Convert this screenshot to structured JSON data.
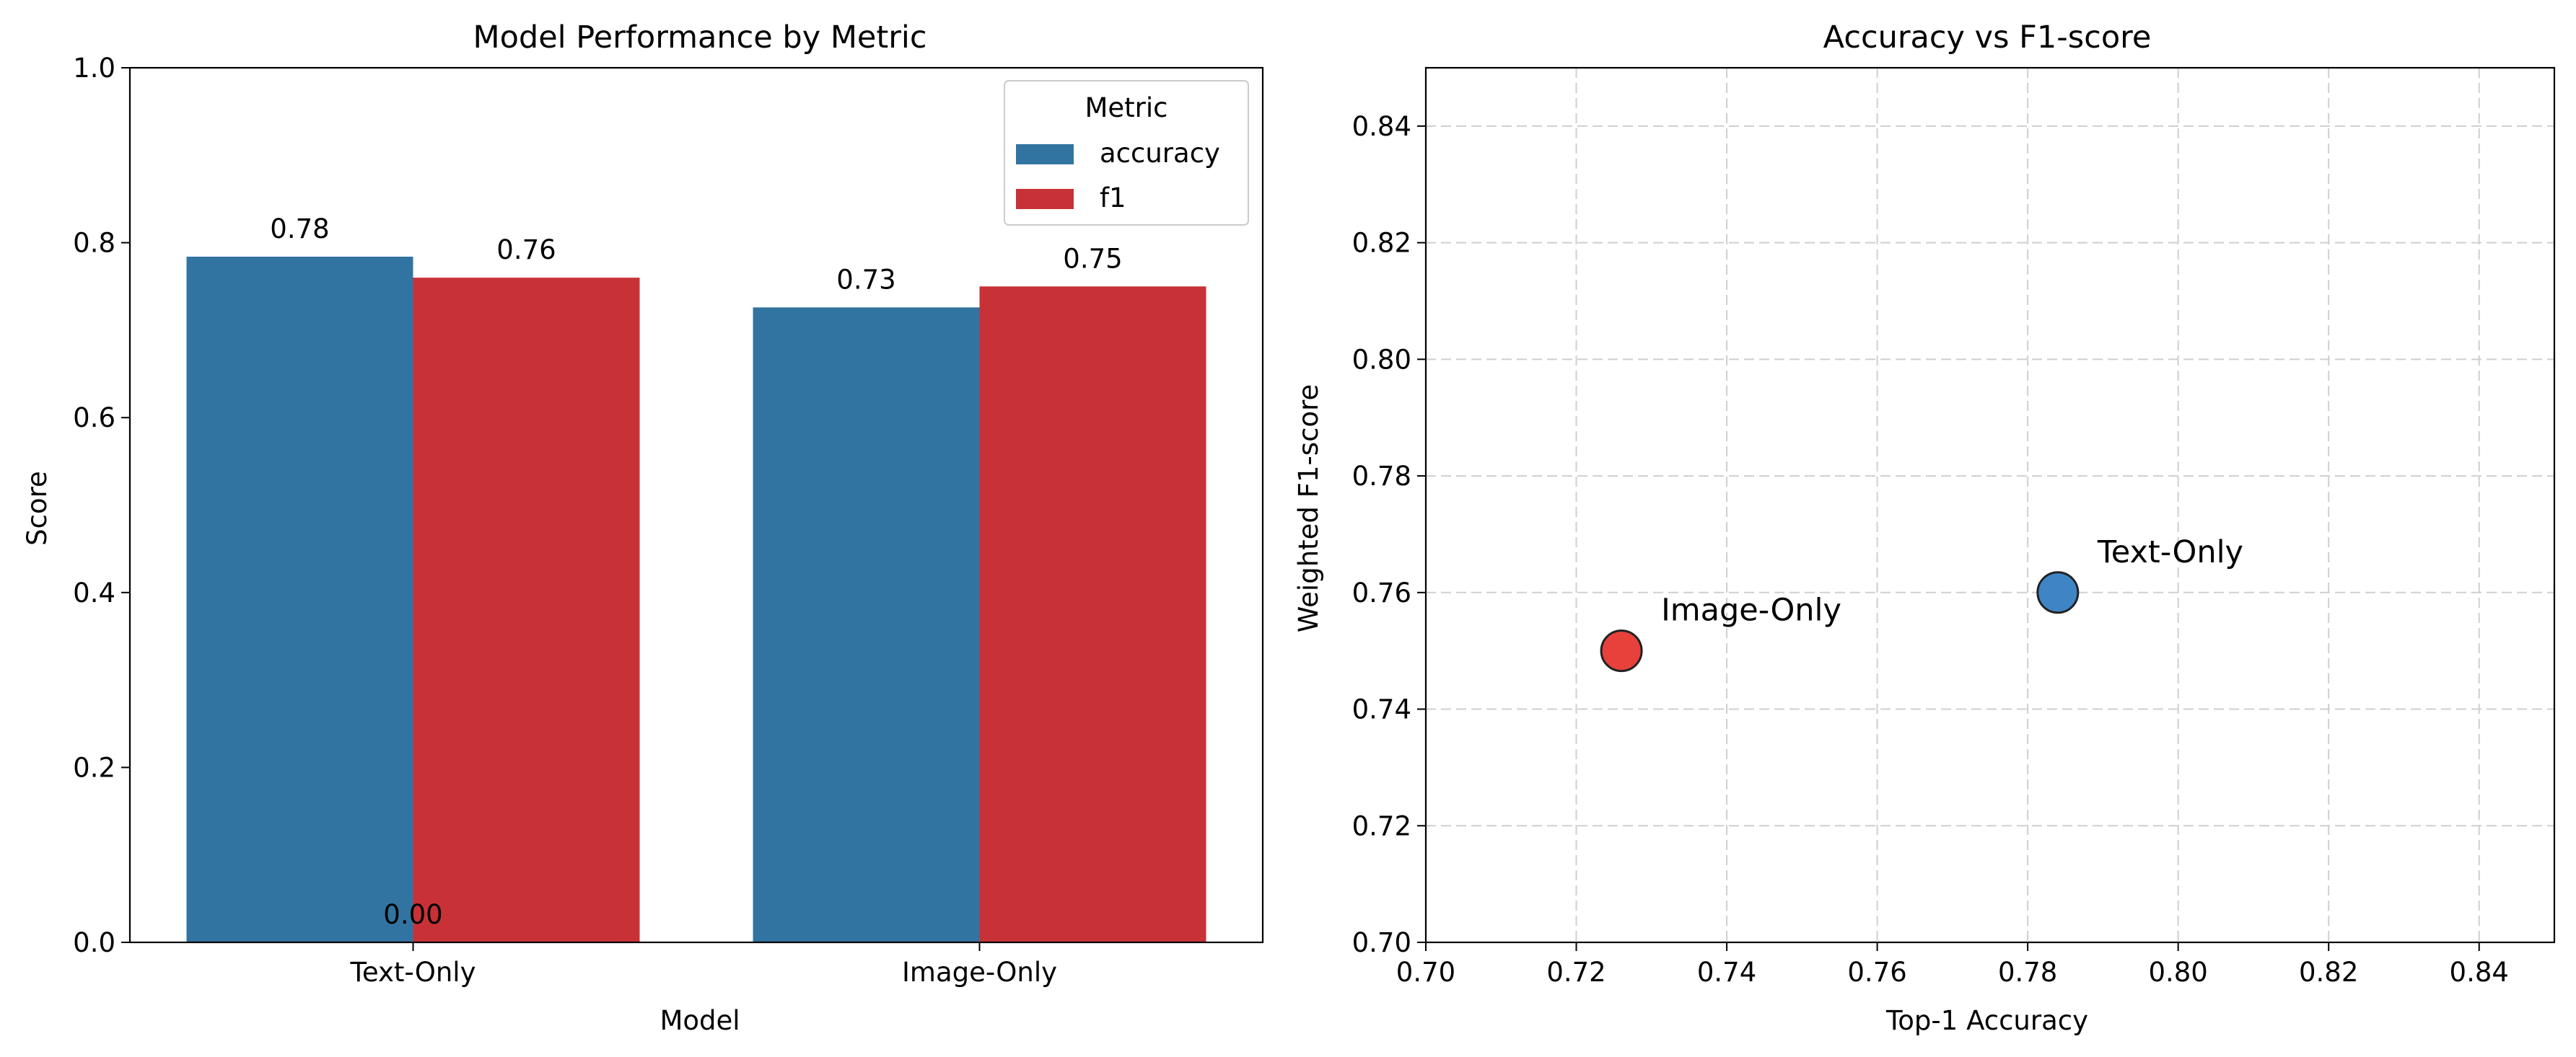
{
  "chart_data": [
    {
      "type": "bar",
      "title": "Model Performance by Metric",
      "xlabel": "Model",
      "ylabel": "Score",
      "categories": [
        "Text-Only",
        "Image-Only"
      ],
      "series": [
        {
          "name": "accuracy",
          "color": "#3274a1",
          "values": [
            0.784,
            0.726
          ]
        },
        {
          "name": "f1",
          "color": "#c83236",
          "values": [
            0.76,
            0.75
          ]
        }
      ],
      "bar_labels": [
        {
          "series": 0,
          "category": 0,
          "text": "0.78"
        },
        {
          "series": 1,
          "category": 0,
          "text": "0.76"
        },
        {
          "series": 0,
          "category": 1,
          "text": "0.73"
        },
        {
          "series": 1,
          "category": 1,
          "text": "0.75"
        }
      ],
      "extra_label": {
        "text": "0.00",
        "x": 0,
        "y": 0
      },
      "ylim": [
        0,
        1.0
      ],
      "yticks": [
        "0.0",
        "0.2",
        "0.4",
        "0.6",
        "0.8",
        "1.0"
      ],
      "legend": {
        "title": "Metric",
        "position": "upper right"
      },
      "grid": false
    },
    {
      "type": "scatter",
      "title": "Accuracy vs F1-score",
      "xlabel": "Top-1 Accuracy",
      "ylabel": "Weighted F1-score",
      "points": [
        {
          "label": "Text-Only",
          "x": 0.784,
          "y": 0.76,
          "color": "#3f85c6"
        },
        {
          "label": "Image-Only",
          "x": 0.726,
          "y": 0.75,
          "color": "#e8413c"
        }
      ],
      "xlim": [
        0.7,
        0.85
      ],
      "ylim": [
        0.7,
        0.85
      ],
      "xticks": [
        "0.70",
        "0.72",
        "0.74",
        "0.76",
        "0.78",
        "0.80",
        "0.82",
        "0.84"
      ],
      "yticks": [
        "0.70",
        "0.72",
        "0.74",
        "0.76",
        "0.78",
        "0.80",
        "0.82",
        "0.84"
      ],
      "grid": true
    }
  ]
}
